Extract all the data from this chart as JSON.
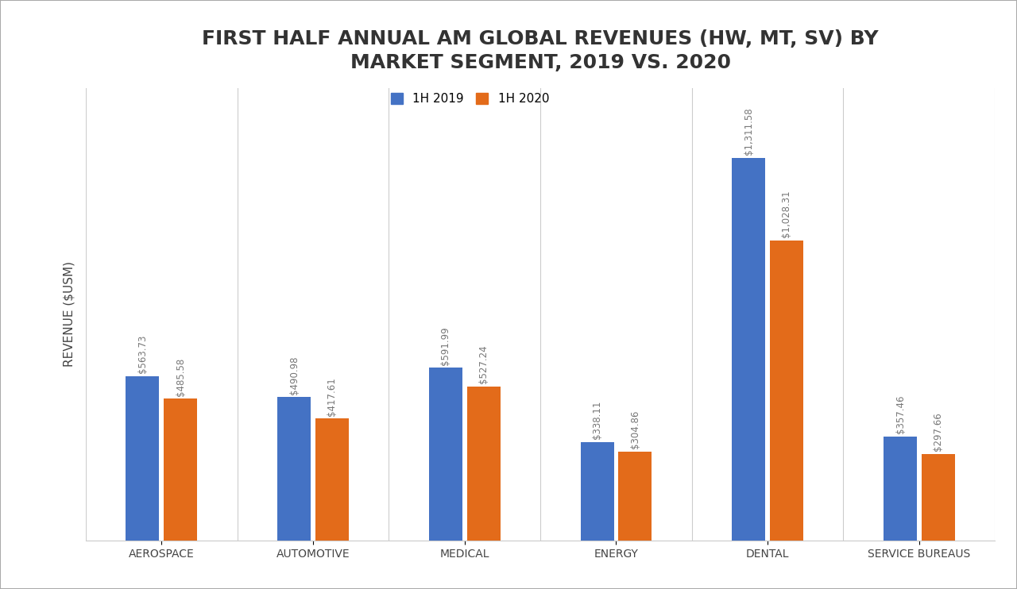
{
  "title": "FIRST HALF ANNUAL AM GLOBAL REVENUES (HW, MT, SV) BY\nMARKET SEGMENT, 2019 VS. 2020",
  "categories": [
    "AEROSPACE",
    "AUTOMOTIVE",
    "MEDICAL",
    "ENERGY",
    "DENTAL",
    "SERVICE BUREAUS"
  ],
  "values_2019": [
    563.73,
    490.98,
    591.99,
    338.11,
    1311.58,
    357.46
  ],
  "values_2020": [
    485.58,
    417.61,
    527.24,
    304.86,
    1028.31,
    297.66
  ],
  "labels_2019": [
    "$563.73",
    "$490.98",
    "$591.99",
    "$338.11",
    "$1,311.58",
    "$357.46"
  ],
  "labels_2020": [
    "$485.58",
    "$417.61",
    "$527.24",
    "$304.86",
    "$1,028.31",
    "$297.66"
  ],
  "color_2019": "#4472C4",
  "color_2020": "#E36B1A",
  "legend_2019": "1H 2019",
  "legend_2020": "1H 2020",
  "ylabel": "REVENUE ($USM)",
  "background_color": "#FFFFFF",
  "title_fontsize": 18,
  "label_fontsize": 8.5,
  "ylabel_fontsize": 11,
  "tick_fontsize": 10,
  "legend_fontsize": 11,
  "ylim": [
    0,
    1550
  ],
  "bar_width": 0.22,
  "bar_gap": 0.03,
  "separator_color": "#CCCCCC",
  "separator_linewidth": 0.8,
  "label_color": "#777777"
}
